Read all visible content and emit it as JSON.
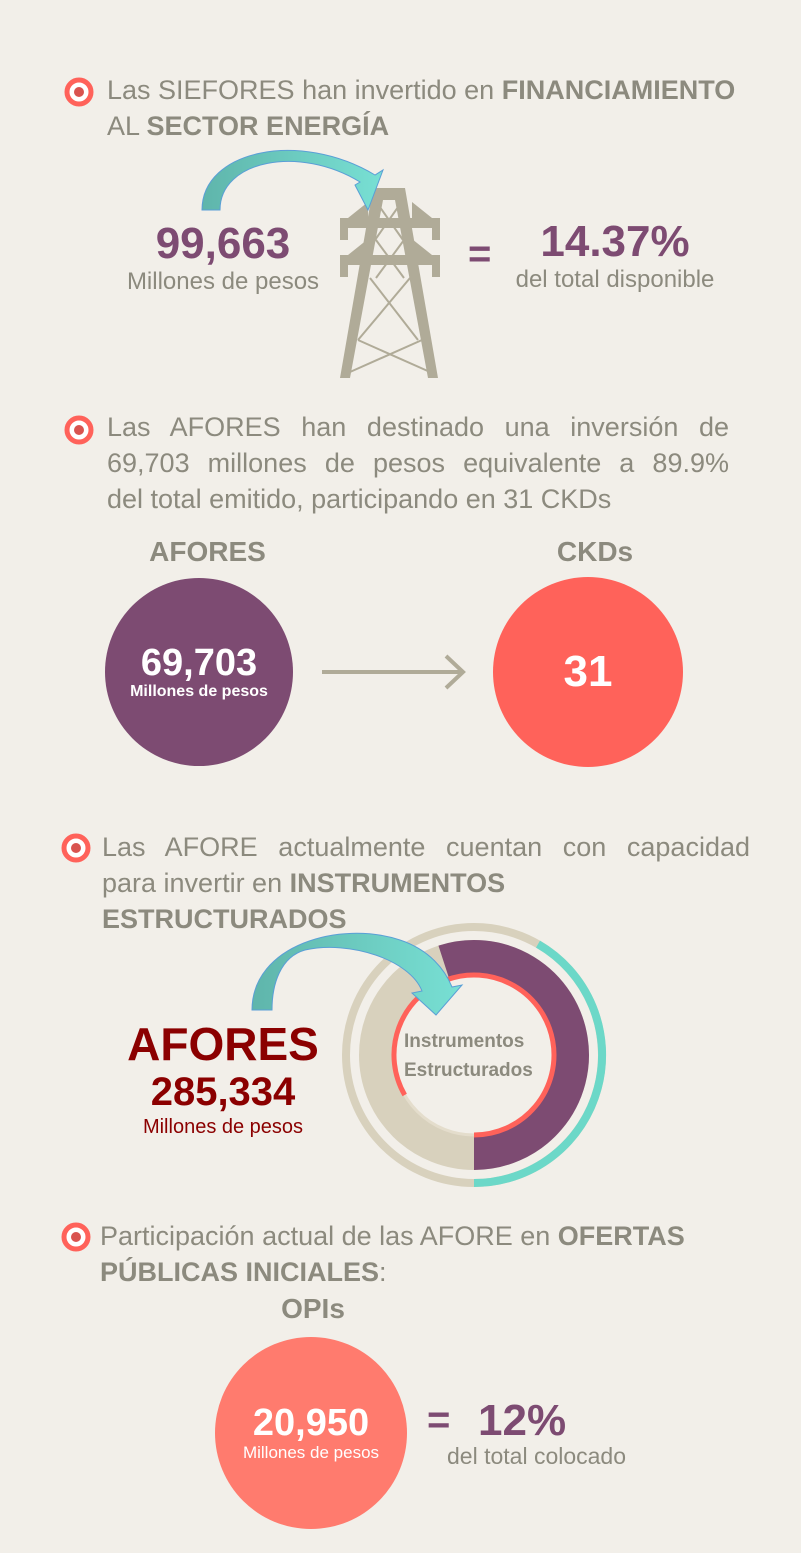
{
  "colors": {
    "background": "#f2efe9",
    "text_gray": "#8c8a7e",
    "purple": "#7d4b72",
    "coral": "#ff625a",
    "salmon": "#ff7b6e",
    "teal": "#6cd8c8",
    "beige": "#d8d1bd",
    "dark_red": "#8b0000",
    "tower": "#b0ab98"
  },
  "section1": {
    "line1_pre": "Las SIEFORES han invertido en ",
    "line1_bold": "FINANCIAMIENTO",
    "line2_pre": "AL ",
    "line2_bold": "SECTOR ENERGÍA",
    "amount": "99,663",
    "amount_unit": "Millones de pesos",
    "equals": "=",
    "percent": "14.37%",
    "percent_label": "del total disponible",
    "icon": "power-tower-icon"
  },
  "section2": {
    "line1": "Las AFORES han destinado una inversión de",
    "line2": "69,703 millones de pesos equivalente a 89.9%",
    "line3": "del total emitido, participando en 31 CKDs",
    "left_label": "AFORES",
    "left_value": "69,703",
    "left_unit": "Millones de pesos",
    "right_label": "CKDs",
    "right_value": "31"
  },
  "section3": {
    "line1": "Las AFORE actualmente cuentan con capacidad",
    "line2_pre": "para invertir en ",
    "line2_bold": "INSTRUMENTOS ESTRUCTURADOS",
    "afores_label": "AFORES",
    "afores_value": "285,334",
    "afores_unit": "Millones de pesos",
    "ring_label_1": "Instrumentos",
    "ring_label_2": "Estructurados"
  },
  "section4": {
    "line1_pre": "Participación actual de las AFORE en ",
    "line1_bold": "OFERTAS",
    "line2_bold": "PÚBLICAS INICIALES",
    "line2_post": ":",
    "label": "OPIs",
    "value": "20,950",
    "unit": "Millones de pesos",
    "equals": "=",
    "percent": "12%",
    "percent_label": "del total colocado"
  }
}
